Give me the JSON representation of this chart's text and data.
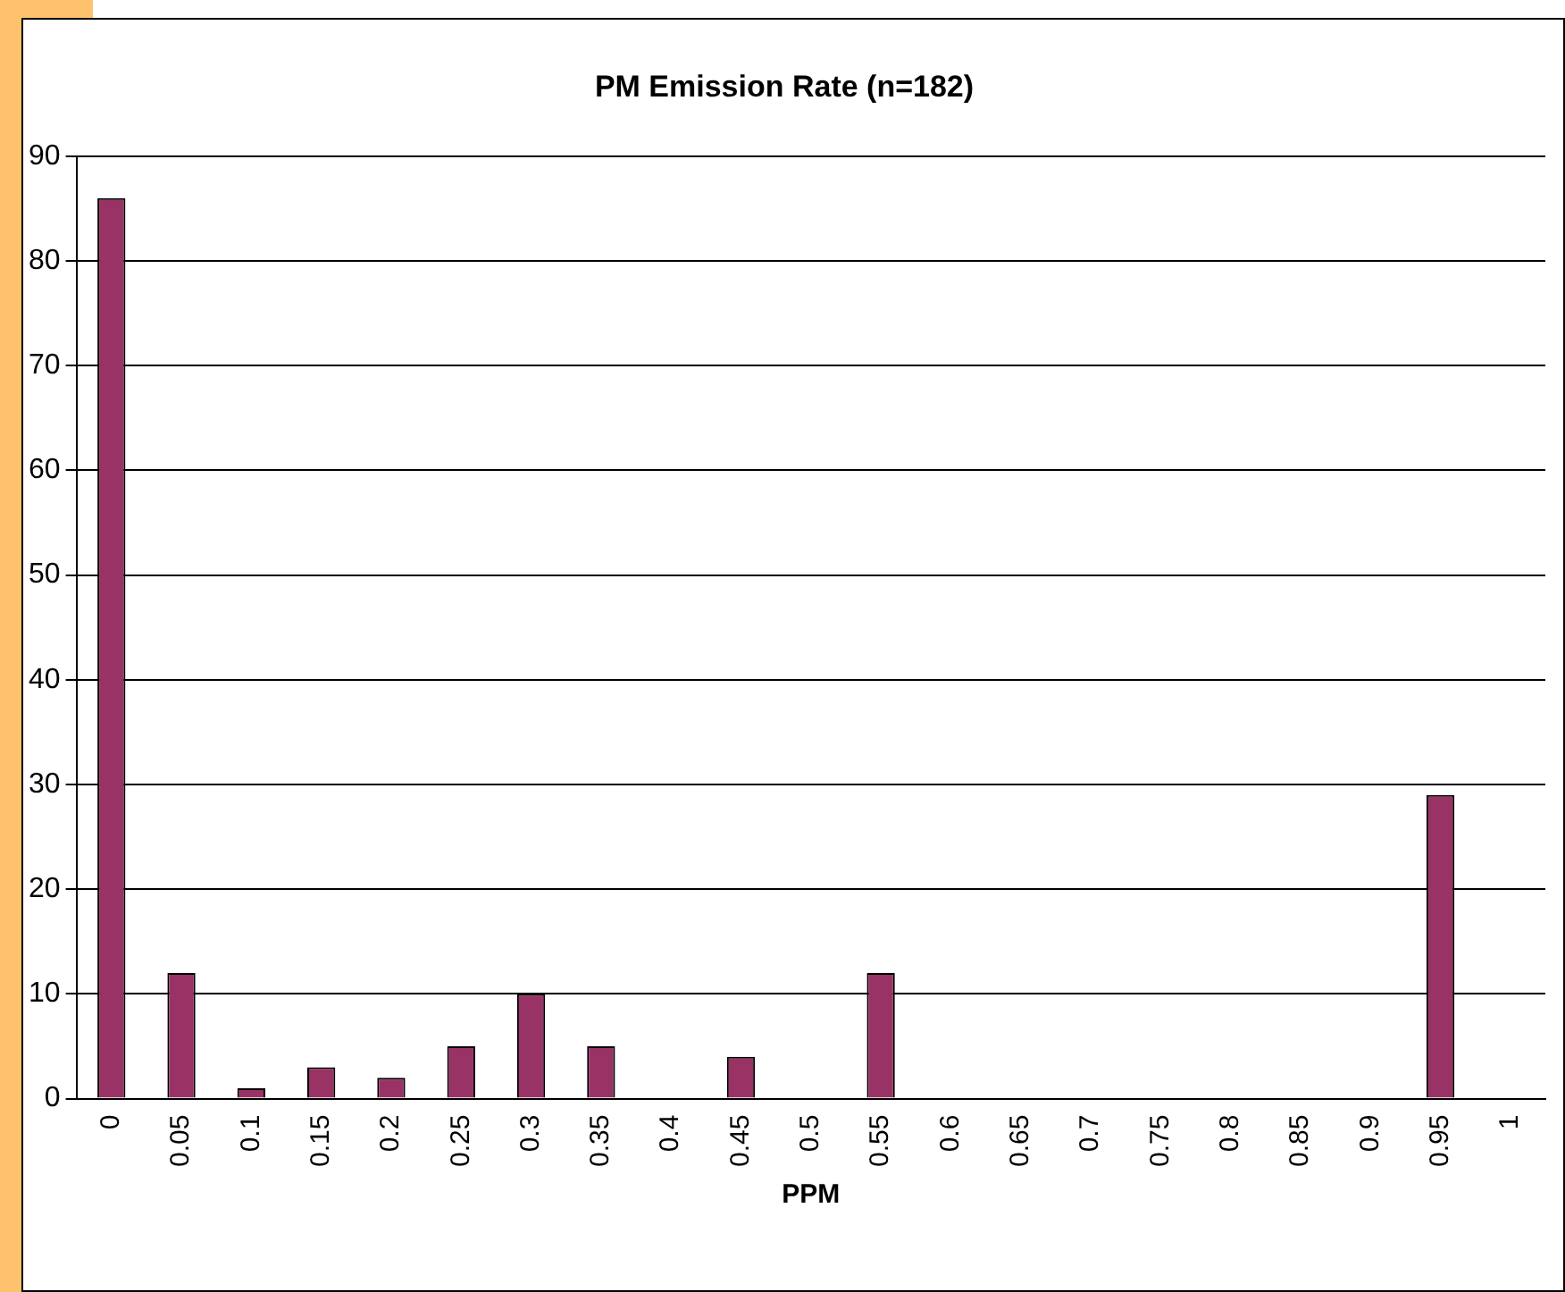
{
  "chart_data": {
    "type": "bar",
    "title": "PM Emission Rate (n=182)",
    "xlabel": "PPM",
    "categories": [
      "0",
      "0.05",
      "0.1",
      "0.15",
      "0.2",
      "0.25",
      "0.3",
      "0.35",
      "0.4",
      "0.45",
      "0.5",
      "0.55",
      "0.6",
      "0.65",
      "0.7",
      "0.75",
      "0.8",
      "0.85",
      "0.9",
      "0.95",
      "1"
    ],
    "values": [
      86,
      12,
      1,
      3,
      2,
      5,
      10,
      5,
      0,
      4,
      0,
      12,
      0,
      0,
      0,
      0,
      0,
      0,
      0,
      29,
      0
    ],
    "color": "#993366",
    "ylim": [
      0,
      90
    ],
    "yticks": [
      0,
      10,
      20,
      30,
      40,
      50,
      60,
      70,
      80,
      90
    ],
    "grid": "y",
    "legend": false
  }
}
